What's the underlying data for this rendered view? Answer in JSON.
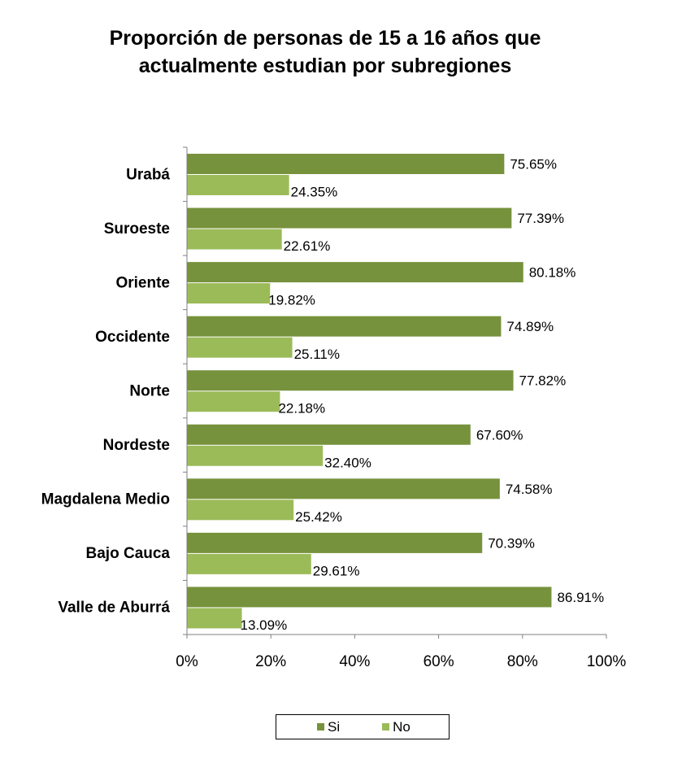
{
  "chart_data": {
    "type": "bar",
    "orientation": "horizontal",
    "title": "Proporción de personas de 15 a 16 años que actualmente estudian por subregiones",
    "title_lines": [
      "Proporción de personas de 15 a 16 años que",
      "actualmente estudian por subregiones"
    ],
    "categories": [
      "Urabá",
      "Suroeste",
      "Oriente",
      "Occidente",
      "Norte",
      "Nordeste",
      "Magdalena Medio",
      "Bajo Cauca",
      "Valle de Aburrá"
    ],
    "series": [
      {
        "name": "Si",
        "color": "#76923c",
        "values": [
          75.65,
          77.39,
          80.18,
          74.89,
          77.82,
          67.6,
          74.58,
          70.39,
          86.91
        ],
        "labels": [
          "75.65%",
          "77.39%",
          "80.18%",
          "74.89%",
          "77.82%",
          "67.60%",
          "74.58%",
          "70.39%",
          "86.91%"
        ]
      },
      {
        "name": "No",
        "color": "#9bbb59",
        "values": [
          24.35,
          22.61,
          19.82,
          25.11,
          22.18,
          32.4,
          25.42,
          29.61,
          13.09
        ],
        "labels": [
          "24.35%",
          "22.61%",
          "19.82%",
          "25.11%",
          "22.18%",
          "32.40%",
          "25.42%",
          "29.61%",
          "13.09%"
        ]
      }
    ],
    "xlim": [
      0,
      100
    ],
    "xticks": [
      "0%",
      "20%",
      "40%",
      "60%",
      "80%",
      "100%"
    ],
    "grid": false,
    "legend_position": "bottom"
  }
}
